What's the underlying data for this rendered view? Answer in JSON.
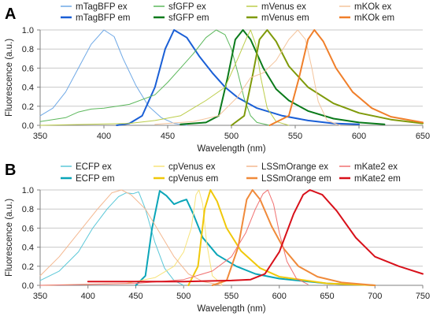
{
  "chart_data": [
    {
      "panel_label": "A",
      "type": "line",
      "xlabel": "Wavelength (nm)",
      "ylabel": "Fluorescence (a.u.)",
      "xlim": [
        350,
        650
      ],
      "ylim": [
        0,
        1.0
      ],
      "xticks": [
        350,
        400,
        450,
        500,
        550,
        600,
        650
      ],
      "yticks": [
        0,
        0.2,
        0.4,
        0.6,
        0.8,
        1.0
      ],
      "ytick_labels": [
        "0.0",
        "0.2",
        "0.4",
        "0.6",
        "0.8",
        "1.0"
      ],
      "grid": "horizontal",
      "legend": "top, 4 columns",
      "series": [
        {
          "name": "mTagBFP ex",
          "color": "#6ea8e6",
          "width": 1.0,
          "points": [
            [
              350,
              0.1
            ],
            [
              360,
              0.18
            ],
            [
              370,
              0.35
            ],
            [
              380,
              0.6
            ],
            [
              390,
              0.85
            ],
            [
              400,
              1.0
            ],
            [
              408,
              0.93
            ],
            [
              415,
              0.7
            ],
            [
              425,
              0.42
            ],
            [
              435,
              0.2
            ],
            [
              445,
              0.08
            ],
            [
              455,
              0.02
            ],
            [
              465,
              0.0
            ]
          ]
        },
        {
          "name": "mTagBFP em",
          "color": "#1a5fd6",
          "width": 2.0,
          "points": [
            [
              410,
              0.0
            ],
            [
              420,
              0.02
            ],
            [
              430,
              0.1
            ],
            [
              440,
              0.4
            ],
            [
              448,
              0.8
            ],
            [
              455,
              1.0
            ],
            [
              465,
              0.92
            ],
            [
              475,
              0.72
            ],
            [
              485,
              0.55
            ],
            [
              495,
              0.4
            ],
            [
              505,
              0.29
            ],
            [
              520,
              0.18
            ],
            [
              540,
              0.1
            ],
            [
              560,
              0.05
            ],
            [
              580,
              0.02
            ],
            [
              600,
              0.01
            ]
          ]
        },
        {
          "name": "sfGFP ex",
          "color": "#5cb85c",
          "width": 1.0,
          "points": [
            [
              350,
              0.04
            ],
            [
              370,
              0.08
            ],
            [
              380,
              0.14
            ],
            [
              390,
              0.17
            ],
            [
              400,
              0.18
            ],
            [
              420,
              0.22
            ],
            [
              440,
              0.32
            ],
            [
              450,
              0.45
            ],
            [
              460,
              0.6
            ],
            [
              470,
              0.75
            ],
            [
              480,
              0.92
            ],
            [
              488,
              1.0
            ],
            [
              495,
              0.95
            ],
            [
              500,
              0.8
            ],
            [
              505,
              0.55
            ],
            [
              510,
              0.28
            ],
            [
              515,
              0.1
            ],
            [
              520,
              0.03
            ],
            [
              530,
              0.0
            ]
          ]
        },
        {
          "name": "sfGFP em",
          "color": "#0a7a1a",
          "width": 2.0,
          "points": [
            [
              460,
              0.01
            ],
            [
              480,
              0.03
            ],
            [
              490,
              0.1
            ],
            [
              497,
              0.5
            ],
            [
              503,
              0.9
            ],
            [
              509,
              1.0
            ],
            [
              515,
              0.9
            ],
            [
              525,
              0.6
            ],
            [
              535,
              0.38
            ],
            [
              545,
              0.26
            ],
            [
              560,
              0.15
            ],
            [
              580,
              0.07
            ],
            [
              600,
              0.03
            ],
            [
              620,
              0.01
            ]
          ]
        },
        {
          "name": "mVenus ex",
          "color": "#bccd4a",
          "width": 1.0,
          "points": [
            [
              350,
              0.0
            ],
            [
              420,
              0.02
            ],
            [
              440,
              0.05
            ],
            [
              460,
              0.1
            ],
            [
              480,
              0.26
            ],
            [
              495,
              0.4
            ],
            [
              505,
              0.7
            ],
            [
              512,
              0.92
            ],
            [
              515,
              1.0
            ],
            [
              519,
              0.85
            ],
            [
              523,
              0.5
            ],
            [
              528,
              0.18
            ],
            [
              535,
              0.04
            ],
            [
              545,
              0.0
            ]
          ]
        },
        {
          "name": "mVenus em",
          "color": "#7f9a0a",
          "width": 2.0,
          "points": [
            [
              500,
              0.0
            ],
            [
              510,
              0.1
            ],
            [
              517,
              0.55
            ],
            [
              522,
              0.9
            ],
            [
              528,
              1.0
            ],
            [
              535,
              0.88
            ],
            [
              545,
              0.62
            ],
            [
              560,
              0.4
            ],
            [
              580,
              0.23
            ],
            [
              600,
              0.13
            ],
            [
              625,
              0.06
            ],
            [
              650,
              0.02
            ]
          ]
        },
        {
          "name": "mKOk ex",
          "color": "#f4c49c",
          "width": 1.0,
          "points": [
            [
              440,
              0.01
            ],
            [
              470,
              0.04
            ],
            [
              490,
              0.1
            ],
            [
              505,
              0.3
            ],
            [
              515,
              0.5
            ],
            [
              525,
              0.55
            ],
            [
              535,
              0.68
            ],
            [
              545,
              0.9
            ],
            [
              552,
              1.0
            ],
            [
              558,
              0.9
            ],
            [
              563,
              0.6
            ],
            [
              568,
              0.25
            ],
            [
              575,
              0.05
            ],
            [
              585,
              0.0
            ]
          ]
        },
        {
          "name": "mKOk em",
          "color": "#f07f2a",
          "width": 2.0,
          "points": [
            [
              530,
              0.0
            ],
            [
              545,
              0.1
            ],
            [
              553,
              0.5
            ],
            [
              560,
              0.9
            ],
            [
              565,
              1.0
            ],
            [
              572,
              0.88
            ],
            [
              582,
              0.6
            ],
            [
              595,
              0.35
            ],
            [
              610,
              0.18
            ],
            [
              625,
              0.09
            ],
            [
              650,
              0.03
            ]
          ]
        }
      ]
    },
    {
      "panel_label": "B",
      "type": "line",
      "xlabel": "Wavelength (nm)",
      "ylabel": "Fluorescence (a.u.)",
      "xlim": [
        350,
        750
      ],
      "ylim": [
        0,
        1.0
      ],
      "xticks": [
        350,
        400,
        450,
        500,
        550,
        600,
        650,
        700,
        750
      ],
      "yticks": [
        0,
        0.2,
        0.4,
        0.6,
        0.8,
        1.0
      ],
      "ytick_labels": [
        "0.0",
        "0.2",
        "0.4",
        "0.6",
        "0.8",
        "1.0"
      ],
      "grid": "horizontal",
      "legend": "top, 4 columns",
      "series": [
        {
          "name": "ECFP ex",
          "color": "#5cc8d8",
          "width": 1.0,
          "points": [
            [
              350,
              0.05
            ],
            [
              370,
              0.15
            ],
            [
              390,
              0.35
            ],
            [
              405,
              0.6
            ],
            [
              420,
              0.8
            ],
            [
              432,
              0.93
            ],
            [
              440,
              0.97
            ],
            [
              447,
              0.96
            ],
            [
              453,
              0.98
            ],
            [
              460,
              0.8
            ],
            [
              470,
              0.45
            ],
            [
              480,
              0.18
            ],
            [
              490,
              0.05
            ],
            [
              500,
              0.0
            ]
          ]
        },
        {
          "name": "ECFP em",
          "color": "#0aa5b8",
          "width": 2.0,
          "points": [
            [
              450,
              0.0
            ],
            [
              460,
              0.1
            ],
            [
              467,
              0.6
            ],
            [
              475,
              0.99
            ],
            [
              482,
              0.94
            ],
            [
              490,
              0.85
            ],
            [
              497,
              0.88
            ],
            [
              503,
              0.9
            ],
            [
              510,
              0.75
            ],
            [
              520,
              0.5
            ],
            [
              535,
              0.32
            ],
            [
              555,
              0.2
            ],
            [
              575,
              0.12
            ],
            [
              600,
              0.07
            ],
            [
              650,
              0.02
            ],
            [
              700,
              0.0
            ]
          ]
        },
        {
          "name": "cpVenus ex",
          "color": "#f7e37a",
          "width": 1.0,
          "points": [
            [
              350,
              0.0
            ],
            [
              440,
              0.02
            ],
            [
              470,
              0.08
            ],
            [
              490,
              0.2
            ],
            [
              500,
              0.35
            ],
            [
              508,
              0.6
            ],
            [
              513,
              0.95
            ],
            [
              516,
              1.0
            ],
            [
              520,
              0.85
            ],
            [
              524,
              0.45
            ],
            [
              530,
              0.1
            ],
            [
              540,
              0.01
            ]
          ]
        },
        {
          "name": "cpVenus em",
          "color": "#f0c80a",
          "width": 2.0,
          "points": [
            [
              505,
              0.0
            ],
            [
              515,
              0.2
            ],
            [
              522,
              0.8
            ],
            [
              528,
              1.0
            ],
            [
              535,
              0.88
            ],
            [
              545,
              0.6
            ],
            [
              560,
              0.36
            ],
            [
              580,
              0.18
            ],
            [
              600,
              0.09
            ],
            [
              650,
              0.02
            ],
            [
              700,
              0.0
            ]
          ]
        },
        {
          "name": "LSSmOrange ex",
          "color": "#f4b890",
          "width": 1.0,
          "points": [
            [
              350,
              0.1
            ],
            [
              370,
              0.3
            ],
            [
              390,
              0.55
            ],
            [
              410,
              0.8
            ],
            [
              425,
              0.97
            ],
            [
              435,
              1.0
            ],
            [
              445,
              0.95
            ],
            [
              460,
              0.8
            ],
            [
              475,
              0.55
            ],
            [
              490,
              0.3
            ],
            [
              505,
              0.12
            ],
            [
              520,
              0.04
            ],
            [
              540,
              0.0
            ]
          ]
        },
        {
          "name": "LSSmOrange em",
          "color": "#f08a3a",
          "width": 2.0,
          "points": [
            [
              530,
              0.0
            ],
            [
              545,
              0.05
            ],
            [
              557,
              0.4
            ],
            [
              566,
              0.9
            ],
            [
              572,
              1.0
            ],
            [
              580,
              0.9
            ],
            [
              592,
              0.62
            ],
            [
              605,
              0.38
            ],
            [
              620,
              0.2
            ],
            [
              640,
              0.09
            ],
            [
              665,
              0.03
            ],
            [
              700,
              0.0
            ]
          ]
        },
        {
          "name": "mKate2 ex",
          "color": "#f07070",
          "width": 1.0,
          "points": [
            [
              350,
              0.0
            ],
            [
              450,
              0.02
            ],
            [
              500,
              0.06
            ],
            [
              530,
              0.15
            ],
            [
              550,
              0.3
            ],
            [
              565,
              0.55
            ],
            [
              575,
              0.8
            ],
            [
              583,
              0.96
            ],
            [
              588,
              1.0
            ],
            [
              594,
              0.85
            ],
            [
              600,
              0.55
            ],
            [
              608,
              0.25
            ],
            [
              618,
              0.07
            ],
            [
              630,
              0.01
            ]
          ]
        },
        {
          "name": "mKate2 em",
          "color": "#d8101a",
          "width": 2.0,
          "points": [
            [
              400,
              0.04
            ],
            [
              450,
              0.04
            ],
            [
              500,
              0.04
            ],
            [
              550,
              0.05
            ],
            [
              570,
              0.06
            ],
            [
              585,
              0.12
            ],
            [
              600,
              0.35
            ],
            [
              615,
              0.75
            ],
            [
              625,
              0.95
            ],
            [
              632,
              1.0
            ],
            [
              645,
              0.95
            ],
            [
              660,
              0.78
            ],
            [
              680,
              0.5
            ],
            [
              700,
              0.3
            ],
            [
              725,
              0.2
            ],
            [
              750,
              0.12
            ]
          ]
        }
      ]
    }
  ]
}
